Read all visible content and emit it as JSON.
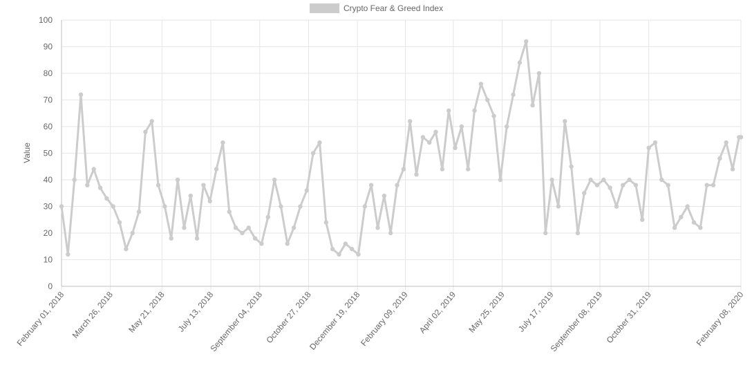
{
  "chart_data": {
    "type": "line",
    "title": "",
    "xlabel": "",
    "ylabel": "Value",
    "ylim": [
      0,
      100
    ],
    "yticks": [
      0,
      10,
      20,
      30,
      40,
      50,
      60,
      70,
      80,
      90,
      100
    ],
    "xlim": [
      "February 01, 2018",
      "February 08, 2020"
    ],
    "xtick_labels": [
      "February 01, 2018",
      "March 26, 2018",
      "May 21, 2018",
      "July 13, 2018",
      "September 04, 2018",
      "October 27, 2018",
      "December 19, 2018",
      "February 09, 2019",
      "April 02, 2019",
      "May 25, 2019",
      "July 17, 2019",
      "September 08, 2019",
      "October 31, 2019",
      "February 08, 2020"
    ],
    "grid": true,
    "legend": {
      "position": "top",
      "entries": [
        "Crypto Fear & Greed Index"
      ]
    },
    "colors": {
      "series": "#cccccc",
      "grid": "#e6e6e6",
      "axis": "#bfbfbf",
      "text": "#666666"
    },
    "series": [
      {
        "name": "Crypto Fear & Greed Index",
        "x": [
          "2018-02-01",
          "2018-02-08",
          "2018-02-15",
          "2018-02-22",
          "2018-03-01",
          "2018-03-08",
          "2018-03-15",
          "2018-03-22",
          "2018-03-29",
          "2018-04-05",
          "2018-04-12",
          "2018-04-19",
          "2018-04-26",
          "2018-05-03",
          "2018-05-10",
          "2018-05-17",
          "2018-05-24",
          "2018-05-31",
          "2018-06-07",
          "2018-06-14",
          "2018-06-21",
          "2018-06-28",
          "2018-07-05",
          "2018-07-12",
          "2018-07-19",
          "2018-07-26",
          "2018-08-02",
          "2018-08-09",
          "2018-08-16",
          "2018-08-23",
          "2018-08-30",
          "2018-09-06",
          "2018-09-13",
          "2018-09-20",
          "2018-09-27",
          "2018-10-04",
          "2018-10-11",
          "2018-10-18",
          "2018-10-25",
          "2018-11-01",
          "2018-11-08",
          "2018-11-15",
          "2018-11-22",
          "2018-11-29",
          "2018-12-06",
          "2018-12-13",
          "2018-12-20",
          "2018-12-27",
          "2019-01-03",
          "2019-01-10",
          "2019-01-17",
          "2019-01-24",
          "2019-01-31",
          "2019-02-07",
          "2019-02-14",
          "2019-02-21",
          "2019-02-28",
          "2019-03-07",
          "2019-03-14",
          "2019-03-21",
          "2019-03-28",
          "2019-04-04",
          "2019-04-11",
          "2019-04-18",
          "2019-04-25",
          "2019-05-02",
          "2019-05-09",
          "2019-05-16",
          "2019-05-23",
          "2019-05-30",
          "2019-06-06",
          "2019-06-13",
          "2019-06-20",
          "2019-06-27",
          "2019-07-04",
          "2019-07-11",
          "2019-07-18",
          "2019-07-25",
          "2019-08-01",
          "2019-08-08",
          "2019-08-15",
          "2019-08-22",
          "2019-08-29",
          "2019-09-05",
          "2019-09-12",
          "2019-09-19",
          "2019-09-26",
          "2019-10-03",
          "2019-10-10",
          "2019-10-17",
          "2019-10-24",
          "2019-10-31",
          "2019-11-07",
          "2019-11-14",
          "2019-11-21",
          "2019-11-28",
          "2019-12-05",
          "2019-12-12",
          "2019-12-19",
          "2019-12-26",
          "2020-01-02",
          "2020-01-09",
          "2020-01-16",
          "2020-01-23",
          "2020-01-30",
          "2020-02-06",
          "2020-02-08"
        ],
        "values": [
          30,
          12,
          40,
          72,
          38,
          44,
          37,
          33,
          30,
          24,
          14,
          20,
          28,
          58,
          62,
          38,
          30,
          18,
          40,
          22,
          34,
          18,
          38,
          32,
          44,
          54,
          28,
          22,
          20,
          22,
          18,
          16,
          26,
          40,
          30,
          16,
          22,
          30,
          36,
          50,
          54,
          24,
          14,
          12,
          16,
          14,
          12,
          30,
          38,
          22,
          34,
          20,
          38,
          44,
          62,
          42,
          56,
          54,
          58,
          44,
          66,
          52,
          60,
          44,
          66,
          76,
          70,
          64,
          40,
          60,
          72,
          84,
          92,
          68,
          80,
          20,
          40,
          30,
          62,
          45,
          20,
          35,
          40,
          38,
          40,
          37,
          30,
          38,
          40,
          38,
          25,
          52,
          54,
          40,
          38,
          22,
          26,
          30,
          24,
          22,
          38,
          38,
          48,
          54,
          44,
          56,
          56
        ]
      }
    ]
  }
}
